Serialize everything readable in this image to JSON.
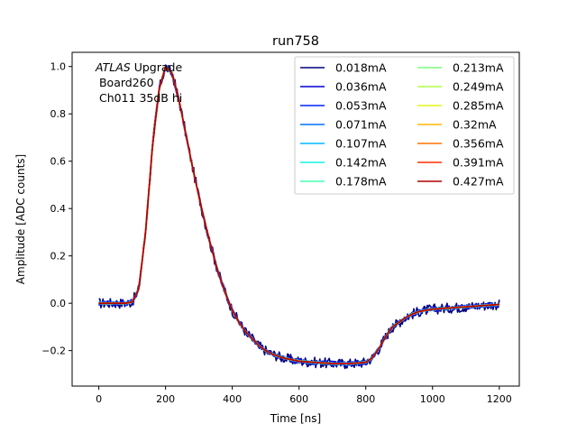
{
  "chart_data": {
    "type": "line",
    "title": "run758",
    "xlabel": "Time [ns]",
    "ylabel": "Amplitude [ADC counts]",
    "xlim": [
      -80,
      1260
    ],
    "ylim": [
      -0.35,
      1.06
    ],
    "xticks": [
      0,
      200,
      400,
      600,
      800,
      1000,
      1200
    ],
    "yticks": [
      -0.2,
      0.0,
      0.2,
      0.4,
      0.6,
      0.8,
      1.0
    ],
    "xtick_labels": [
      "0",
      "200",
      "400",
      "600",
      "800",
      "1000",
      "1200"
    ],
    "ytick_labels": [
      "−0.2",
      "0.0",
      "0.2",
      "0.4",
      "0.6",
      "0.8",
      "1.0"
    ],
    "grid": false,
    "legend_position": "top-right",
    "legend_columns": 2,
    "annotation": {
      "atlas_italic": "ATLAS",
      "atlas_rest": " Upgrade",
      "line2": " Board260",
      "line3": " Ch011 35dB hi"
    },
    "pulse_shape": {
      "x": [
        0,
        80,
        100,
        120,
        140,
        160,
        180,
        200,
        220,
        240,
        260,
        280,
        300,
        320,
        340,
        360,
        380,
        400,
        420,
        440,
        460,
        480,
        500,
        520,
        550,
        600,
        650,
        700,
        750,
        800,
        820,
        840,
        860,
        880,
        900,
        920,
        940,
        960,
        980,
        1000,
        1050,
        1100,
        1150,
        1200
      ],
      "y": [
        0.0,
        0.0,
        0.005,
        0.06,
        0.3,
        0.65,
        0.9,
        1.0,
        0.97,
        0.86,
        0.72,
        0.58,
        0.45,
        0.33,
        0.22,
        0.12,
        0.04,
        -0.03,
        -0.08,
        -0.12,
        -0.15,
        -0.18,
        -0.2,
        -0.215,
        -0.23,
        -0.245,
        -0.25,
        -0.255,
        -0.255,
        -0.25,
        -0.23,
        -0.19,
        -0.14,
        -0.1,
        -0.08,
        -0.06,
        -0.045,
        -0.035,
        -0.03,
        -0.025,
        -0.02,
        -0.015,
        -0.01,
        -0.005
      ]
    },
    "series": [
      {
        "name": "0.018mA",
        "color": "#00007f",
        "noise": 0.022
      },
      {
        "name": "0.036mA",
        "color": "#0000d0",
        "noise": 0.012
      },
      {
        "name": "0.053mA",
        "color": "#0024ff",
        "noise": 0.008
      },
      {
        "name": "0.071mA",
        "color": "#0070ff",
        "noise": 0.006
      },
      {
        "name": "0.107mA",
        "color": "#00b8ff",
        "noise": 0.004
      },
      {
        "name": "0.142mA",
        "color": "#13f4e3",
        "noise": 0.003
      },
      {
        "name": "0.178mA",
        "color": "#46ffb0",
        "noise": 0.003
      },
      {
        "name": "0.213mA",
        "color": "#7cff7a",
        "noise": 0.002
      },
      {
        "name": "0.249mA",
        "color": "#b0ff46",
        "noise": 0.002
      },
      {
        "name": "0.285mA",
        "color": "#e4f712",
        "noise": 0.002
      },
      {
        "name": "0.32mA",
        "color": "#ffb900",
        "noise": 0.001
      },
      {
        "name": "0.356mA",
        "color": "#ff7400",
        "noise": 0.001
      },
      {
        "name": "0.391mA",
        "color": "#ff3000",
        "noise": 0.001
      },
      {
        "name": "0.427mA",
        "color": "#b20000",
        "noise": 0.0
      }
    ]
  }
}
